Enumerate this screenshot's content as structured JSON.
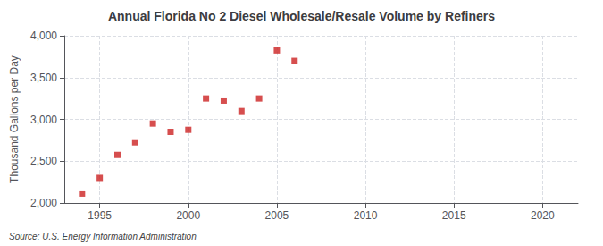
{
  "chart_data": {
    "type": "scatter",
    "title": "Annual Florida No 2 Diesel Wholesale/Resale Volume by Refiners",
    "ylabel": "Thousand Gallons per Day",
    "annotations": [
      "Source: U.S. Energy Information Administration"
    ],
    "x": [
      1994,
      1995,
      1996,
      1997,
      1998,
      1999,
      2000,
      2001,
      2002,
      2003,
      2004,
      2005,
      2006
    ],
    "values": [
      2113,
      2300,
      2575,
      2725,
      2950,
      2850,
      2875,
      3250,
      3225,
      3100,
      3250,
      3825,
      3700
    ],
    "color": "#cc2222",
    "marker": "square",
    "xlim": [
      1993,
      2022
    ],
    "xticks": [
      1995,
      2000,
      2005,
      2010,
      2015,
      2020
    ],
    "ylim": [
      2000,
      4000
    ],
    "yticks": [
      {
        "value": 2000,
        "label": "2,000"
      },
      {
        "value": 2500,
        "label": "2,500"
      },
      {
        "value": 3000,
        "label": "3,000"
      },
      {
        "value": 3500,
        "label": "3,500"
      },
      {
        "value": 4000,
        "label": "4,000"
      }
    ],
    "grid": true
  }
}
